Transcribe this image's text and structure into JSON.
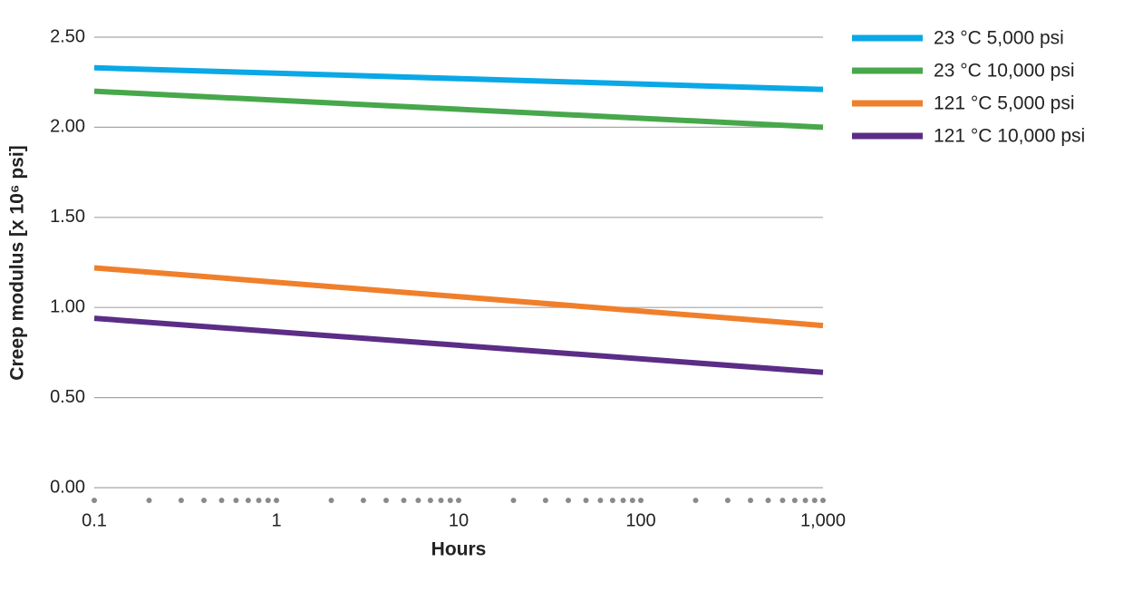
{
  "chart_data": {
    "type": "line",
    "xlabel": "Hours",
    "ylabel": "Creep modulus [x 10⁶ psi]",
    "x": [
      0.1,
      1000
    ],
    "series": [
      {
        "name": "23 °C 5,000 psi",
        "color": "#0aa8e6",
        "values": [
          2.33,
          2.21
        ]
      },
      {
        "name": "23 °C 10,000 psi",
        "color": "#47a84b",
        "values": [
          2.2,
          2.0
        ]
      },
      {
        "name": "121 °C 5,000 psi",
        "color": "#f07f2b",
        "values": [
          1.22,
          0.9
        ]
      },
      {
        "name": "121 °C 10,000 psi",
        "color": "#5b2d86",
        "values": [
          0.94,
          0.64
        ]
      }
    ],
    "xscale": "log",
    "xlim": [
      0.1,
      1000
    ],
    "xticks": [
      0.1,
      1,
      10,
      100,
      {
        "value": 1000,
        "label": "1,000"
      }
    ],
    "xminorticks": [
      0.2,
      0.3,
      0.4,
      0.5,
      0.6,
      0.7,
      0.8,
      0.9,
      2,
      3,
      4,
      5,
      6,
      7,
      8,
      9,
      20,
      30,
      40,
      50,
      60,
      70,
      80,
      90,
      200,
      300,
      400,
      500,
      600,
      700,
      800,
      900
    ],
    "ylim": [
      0,
      2.5
    ],
    "yticks": [
      {
        "value": 0,
        "label": "0.00"
      },
      {
        "value": 0.5,
        "label": "0.50"
      },
      {
        "value": 1,
        "label": "1.00"
      },
      {
        "value": 1.5,
        "label": "1.50"
      },
      {
        "value": 2,
        "label": "2.00"
      },
      {
        "value": 2.5,
        "label": "2.50"
      }
    ],
    "grid": true,
    "legend": "right"
  }
}
